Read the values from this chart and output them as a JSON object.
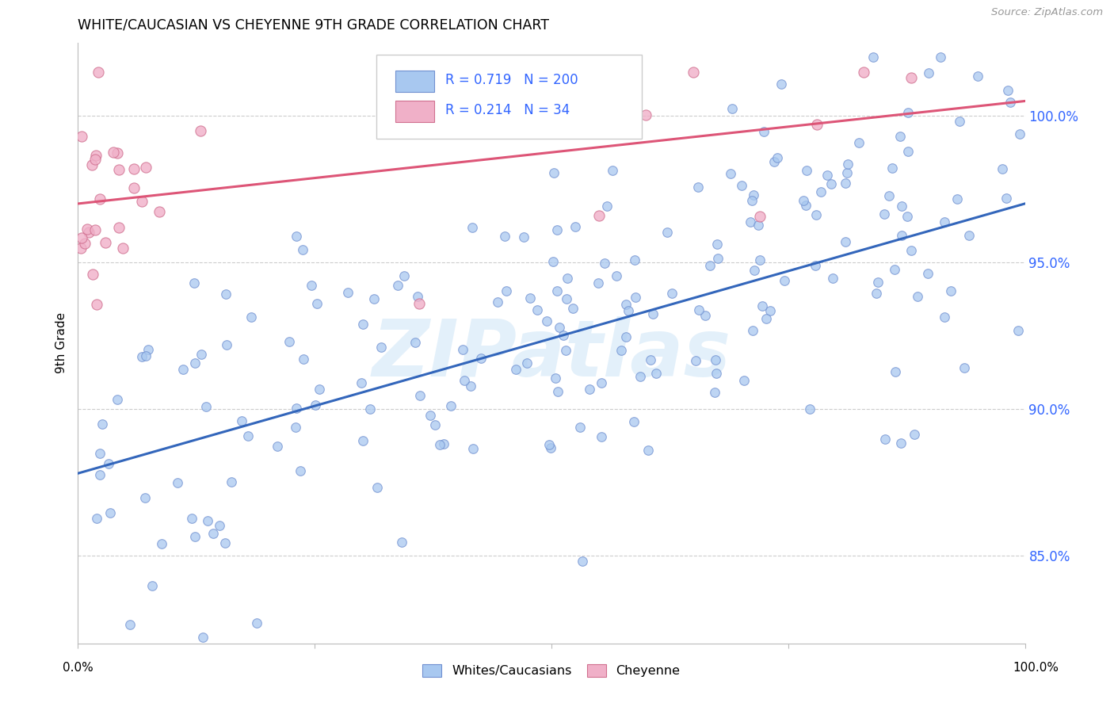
{
  "title": "WHITE/CAUCASIAN VS CHEYENNE 9TH GRADE CORRELATION CHART",
  "source": "Source: ZipAtlas.com",
  "ylabel": "9th Grade",
  "watermark": "ZIPatlas",
  "blue_R": 0.719,
  "blue_N": 200,
  "pink_R": 0.214,
  "pink_N": 34,
  "blue_color": "#a8c8f0",
  "pink_color": "#f0b0c8",
  "blue_edge_color": "#7090d0",
  "pink_edge_color": "#d07090",
  "blue_line_color": "#3366bb",
  "pink_line_color": "#dd5577",
  "legend_N_color": "#3366ff",
  "xmin": 0.0,
  "xmax": 1.0,
  "ymin": 0.82,
  "ymax": 1.025,
  "yticks": [
    0.85,
    0.9,
    0.95,
    1.0
  ],
  "ytick_labels": [
    "85.0%",
    "90.0%",
    "95.0%",
    "100.0%"
  ],
  "right_axis_color": "#3366ff",
  "grid_color": "#cccccc",
  "legend_entries": [
    "Whites/Caucasians",
    "Cheyenne"
  ],
  "blue_line_y0": 0.878,
  "blue_line_y1": 0.97,
  "pink_line_y0": 0.97,
  "pink_line_y1": 1.005
}
